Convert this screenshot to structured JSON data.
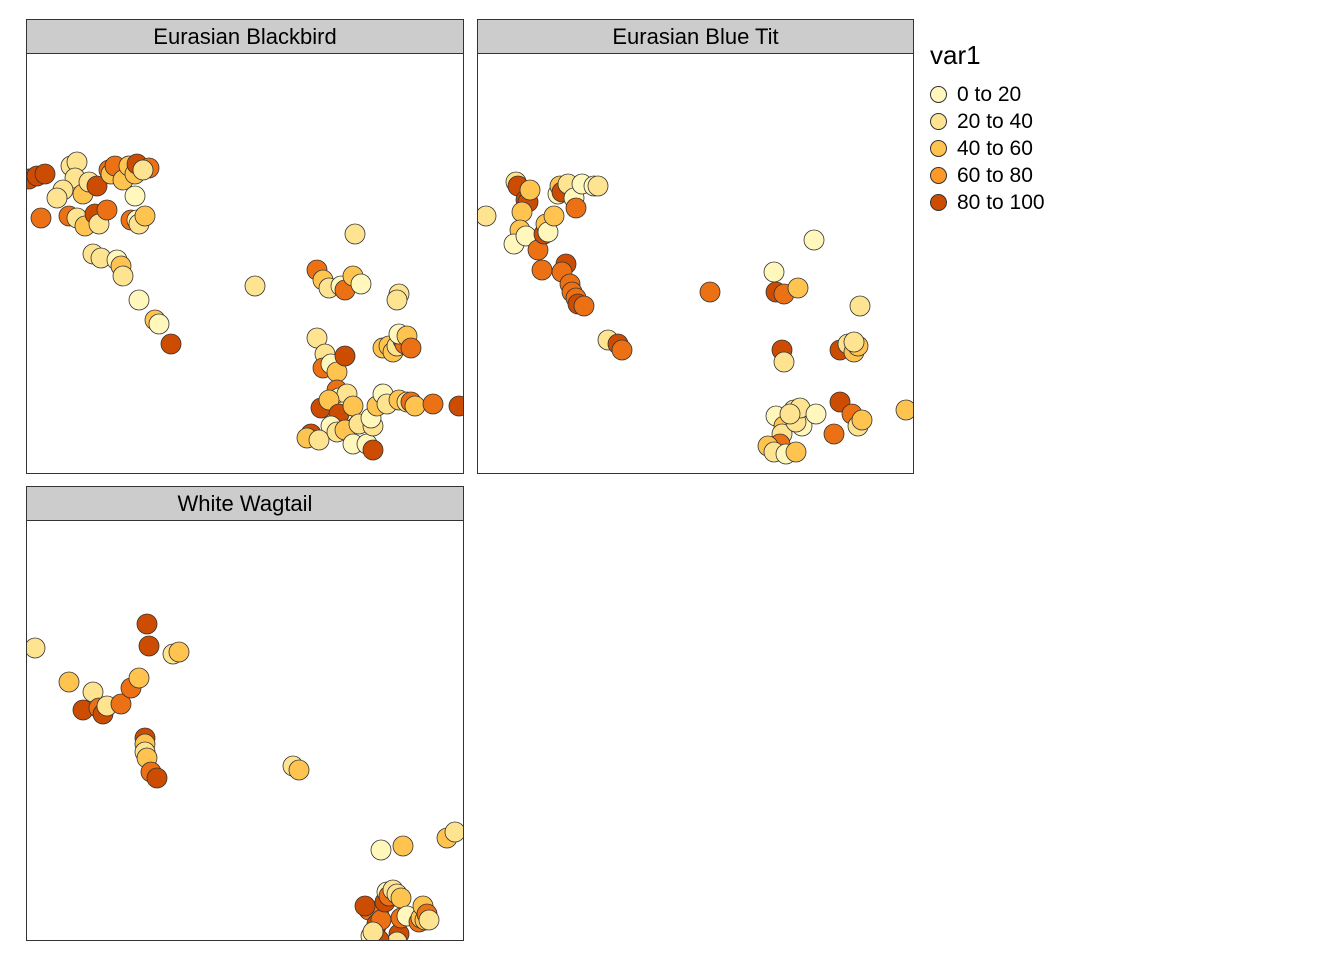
{
  "chart_data": {
    "type": "scatter",
    "facets": [
      {
        "title": "Eurasian Blackbird",
        "points": [
          [
            2,
            125,
            4
          ],
          [
            10,
            122,
            4
          ],
          [
            18,
            120,
            4
          ],
          [
            44,
            112,
            1
          ],
          [
            50,
            108,
            1
          ],
          [
            48,
            124,
            1
          ],
          [
            36,
            136,
            1
          ],
          [
            56,
            140,
            2
          ],
          [
            62,
            128,
            1
          ],
          [
            70,
            132,
            4
          ],
          [
            82,
            116,
            3
          ],
          [
            84,
            120,
            2
          ],
          [
            88,
            112,
            3
          ],
          [
            96,
            126,
            2
          ],
          [
            102,
            112,
            2
          ],
          [
            108,
            120,
            2
          ],
          [
            110,
            110,
            4
          ],
          [
            122,
            114,
            3
          ],
          [
            108,
            142,
            0
          ],
          [
            116,
            116,
            1
          ],
          [
            30,
            144,
            1
          ],
          [
            42,
            162,
            3
          ],
          [
            50,
            164,
            1
          ],
          [
            58,
            172,
            2
          ],
          [
            68,
            160,
            4
          ],
          [
            72,
            170,
            1
          ],
          [
            80,
            156,
            3
          ],
          [
            14,
            164,
            3
          ],
          [
            104,
            166,
            3
          ],
          [
            110,
            166,
            0
          ],
          [
            112,
            170,
            1
          ],
          [
            118,
            162,
            2
          ],
          [
            66,
            200,
            1
          ],
          [
            74,
            204,
            1
          ],
          [
            90,
            206,
            0
          ],
          [
            94,
            212,
            2
          ],
          [
            96,
            222,
            1
          ],
          [
            112,
            246,
            0
          ],
          [
            128,
            266,
            2
          ],
          [
            132,
            270,
            0
          ],
          [
            144,
            290,
            4
          ],
          [
            228,
            232,
            1
          ],
          [
            328,
            180,
            1
          ],
          [
            290,
            216,
            3
          ],
          [
            296,
            226,
            2
          ],
          [
            302,
            234,
            1
          ],
          [
            314,
            232,
            0
          ],
          [
            318,
            236,
            3
          ],
          [
            326,
            222,
            2
          ],
          [
            334,
            230,
            0
          ],
          [
            372,
            240,
            1
          ],
          [
            370,
            246,
            1
          ],
          [
            290,
            284,
            1
          ],
          [
            298,
            300,
            1
          ],
          [
            296,
            314,
            3
          ],
          [
            304,
            310,
            0
          ],
          [
            310,
            318,
            2
          ],
          [
            318,
            302,
            4
          ],
          [
            310,
            336,
            3
          ],
          [
            312,
            344,
            0
          ],
          [
            320,
            340,
            1
          ],
          [
            316,
            358,
            0
          ],
          [
            294,
            354,
            4
          ],
          [
            302,
            346,
            2
          ],
          [
            312,
            360,
            4
          ],
          [
            326,
            352,
            2
          ],
          [
            304,
            372,
            0
          ],
          [
            284,
            380,
            4
          ],
          [
            280,
            384,
            2
          ],
          [
            292,
            386,
            1
          ],
          [
            310,
            378,
            1
          ],
          [
            318,
            376,
            2
          ],
          [
            332,
            370,
            1
          ],
          [
            326,
            390,
            0
          ],
          [
            340,
            390,
            0
          ],
          [
            346,
            372,
            1
          ],
          [
            344,
            364,
            0
          ],
          [
            346,
            396,
            4
          ],
          [
            356,
            294,
            2
          ],
          [
            362,
            292,
            2
          ],
          [
            366,
            298,
            2
          ],
          [
            370,
            292,
            1
          ],
          [
            376,
            286,
            4
          ],
          [
            378,
            290,
            3
          ],
          [
            372,
            280,
            0
          ],
          [
            380,
            282,
            2
          ],
          [
            384,
            294,
            3
          ],
          [
            350,
            352,
            2
          ],
          [
            356,
            340,
            0
          ],
          [
            360,
            350,
            1
          ],
          [
            372,
            346,
            2
          ],
          [
            380,
            348,
            1
          ],
          [
            384,
            348,
            3
          ],
          [
            388,
            352,
            2
          ],
          [
            406,
            350,
            3
          ],
          [
            432,
            352,
            4
          ]
        ]
      },
      {
        "title": "Eurasian Blue Tit",
        "points": [
          [
            8,
            162,
            1
          ],
          [
            38,
            128,
            1
          ],
          [
            40,
            132,
            4
          ],
          [
            48,
            146,
            4
          ],
          [
            50,
            148,
            4
          ],
          [
            52,
            136,
            2
          ],
          [
            44,
            158,
            2
          ],
          [
            42,
            176,
            2
          ],
          [
            36,
            190,
            0
          ],
          [
            48,
            182,
            0
          ],
          [
            60,
            196,
            3
          ],
          [
            66,
            180,
            4
          ],
          [
            68,
            170,
            2
          ],
          [
            70,
            178,
            0
          ],
          [
            76,
            162,
            2
          ],
          [
            80,
            140,
            0
          ],
          [
            82,
            132,
            2
          ],
          [
            84,
            138,
            4
          ],
          [
            90,
            130,
            1
          ],
          [
            96,
            144,
            0
          ],
          [
            98,
            154,
            3
          ],
          [
            104,
            130,
            0
          ],
          [
            116,
            132,
            0
          ],
          [
            120,
            132,
            1
          ],
          [
            88,
            210,
            4
          ],
          [
            84,
            218,
            3
          ],
          [
            92,
            230,
            3
          ],
          [
            94,
            238,
            3
          ],
          [
            98,
            244,
            3
          ],
          [
            100,
            250,
            4
          ],
          [
            106,
            252,
            3
          ],
          [
            64,
            216,
            3
          ],
          [
            130,
            286,
            1
          ],
          [
            140,
            290,
            4
          ],
          [
            144,
            296,
            3
          ],
          [
            232,
            238,
            3
          ],
          [
            296,
            218,
            0
          ],
          [
            298,
            238,
            4
          ],
          [
            306,
            240,
            3
          ],
          [
            320,
            234,
            2
          ],
          [
            336,
            186,
            0
          ],
          [
            304,
            296,
            4
          ],
          [
            306,
            308,
            1
          ],
          [
            382,
            252,
            1
          ],
          [
            362,
            296,
            4
          ],
          [
            370,
            290,
            1
          ],
          [
            376,
            298,
            2
          ],
          [
            380,
            292,
            2
          ],
          [
            376,
            288,
            1
          ],
          [
            316,
            356,
            1
          ],
          [
            298,
            362,
            0
          ],
          [
            306,
            372,
            2
          ],
          [
            304,
            380,
            1
          ],
          [
            302,
            390,
            3
          ],
          [
            290,
            392,
            2
          ],
          [
            296,
            398,
            1
          ],
          [
            308,
            400,
            0
          ],
          [
            318,
            398,
            2
          ],
          [
            324,
            372,
            0
          ],
          [
            318,
            368,
            1
          ],
          [
            322,
            354,
            1
          ],
          [
            312,
            360,
            1
          ],
          [
            338,
            360,
            0
          ],
          [
            356,
            380,
            3
          ],
          [
            362,
            348,
            4
          ],
          [
            374,
            360,
            3
          ],
          [
            380,
            372,
            1
          ],
          [
            384,
            366,
            2
          ],
          [
            428,
            356,
            2
          ]
        ]
      },
      {
        "title": "White Wagtail",
        "points": [
          [
            8,
            594,
            1
          ],
          [
            42,
            628,
            2
          ],
          [
            56,
            656,
            4
          ],
          [
            66,
            638,
            1
          ],
          [
            72,
            654,
            3
          ],
          [
            76,
            660,
            4
          ],
          [
            80,
            652,
            1
          ],
          [
            94,
            650,
            3
          ],
          [
            104,
            634,
            3
          ],
          [
            112,
            624,
            2
          ],
          [
            120,
            570,
            4
          ],
          [
            122,
            592,
            4
          ],
          [
            146,
            600,
            1
          ],
          [
            152,
            598,
            2
          ],
          [
            118,
            684,
            4
          ],
          [
            118,
            690,
            2
          ],
          [
            118,
            698,
            1
          ],
          [
            120,
            704,
            2
          ],
          [
            124,
            718,
            3
          ],
          [
            130,
            724,
            4
          ],
          [
            266,
            712,
            1
          ],
          [
            272,
            716,
            2
          ],
          [
            354,
            796,
            0
          ],
          [
            376,
            792,
            2
          ],
          [
            420,
            784,
            2
          ],
          [
            428,
            778,
            1
          ],
          [
            352,
            862,
            0
          ],
          [
            342,
            856,
            3
          ],
          [
            338,
            852,
            4
          ],
          [
            344,
            882,
            0
          ],
          [
            348,
            876,
            3
          ],
          [
            350,
            870,
            4
          ],
          [
            354,
            866,
            3
          ],
          [
            358,
            848,
            4
          ],
          [
            360,
            838,
            0
          ],
          [
            362,
            842,
            3
          ],
          [
            366,
            836,
            1
          ],
          [
            370,
            840,
            1
          ],
          [
            374,
            844,
            2
          ],
          [
            372,
            880,
            4
          ],
          [
            374,
            864,
            3
          ],
          [
            380,
            862,
            0
          ],
          [
            392,
            868,
            3
          ],
          [
            394,
            864,
            2
          ],
          [
            396,
            852,
            2
          ],
          [
            398,
            866,
            2
          ],
          [
            400,
            860,
            3
          ],
          [
            402,
            866,
            1
          ],
          [
            370,
            888,
            1
          ],
          [
            352,
            886,
            4
          ],
          [
            346,
            878,
            1
          ]
        ]
      }
    ],
    "legend_title": "var1",
    "classes": [
      "0 to 20",
      "20 to 40",
      "40 to 60",
      "60 to 80",
      "80 to 100"
    ],
    "colors": [
      "#fff7bc",
      "#fee391",
      "#fec44f",
      "#fe9929",
      "#d95f0e",
      "#cc4c02"
    ],
    "legend_placement": "right-top"
  }
}
